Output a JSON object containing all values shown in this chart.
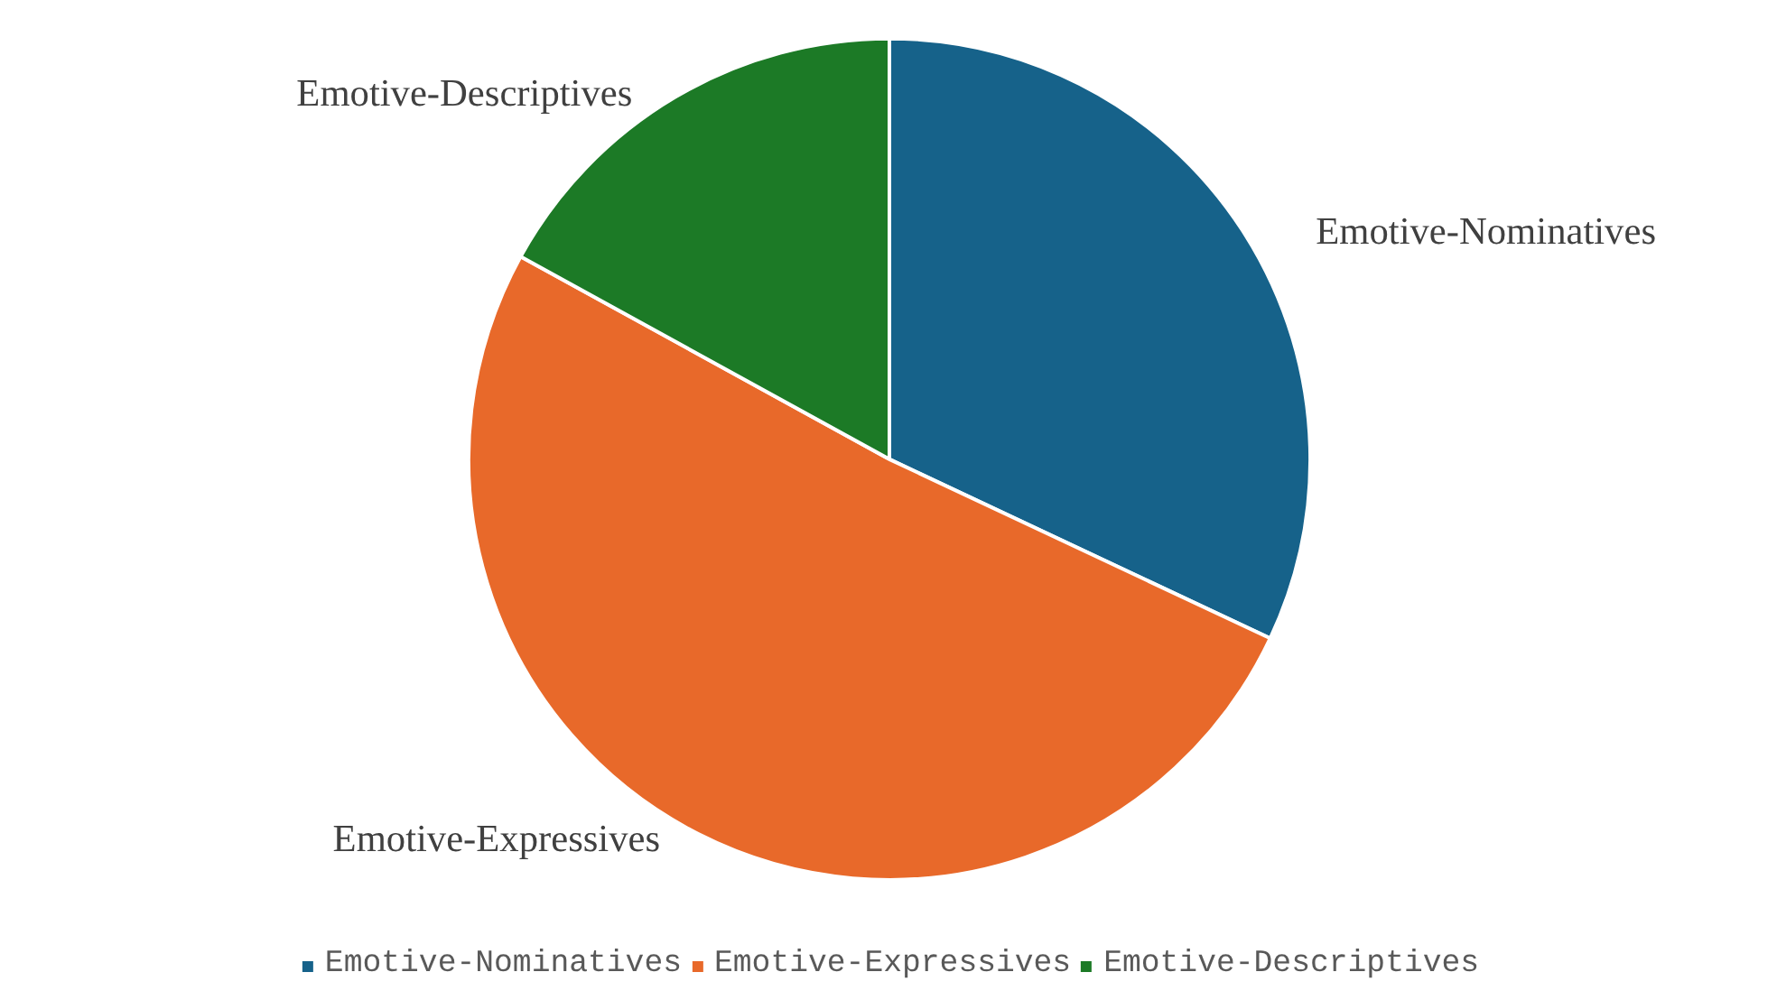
{
  "chart_data": {
    "type": "pie",
    "categories": [
      "Emotive-Nominatives",
      "Emotive-Expressives",
      "Emotive-Descriptives"
    ],
    "values": [
      32,
      51,
      17
    ],
    "colors": [
      "#16628a",
      "#e8692a",
      "#1c7a26"
    ],
    "legend": "bottom"
  }
}
